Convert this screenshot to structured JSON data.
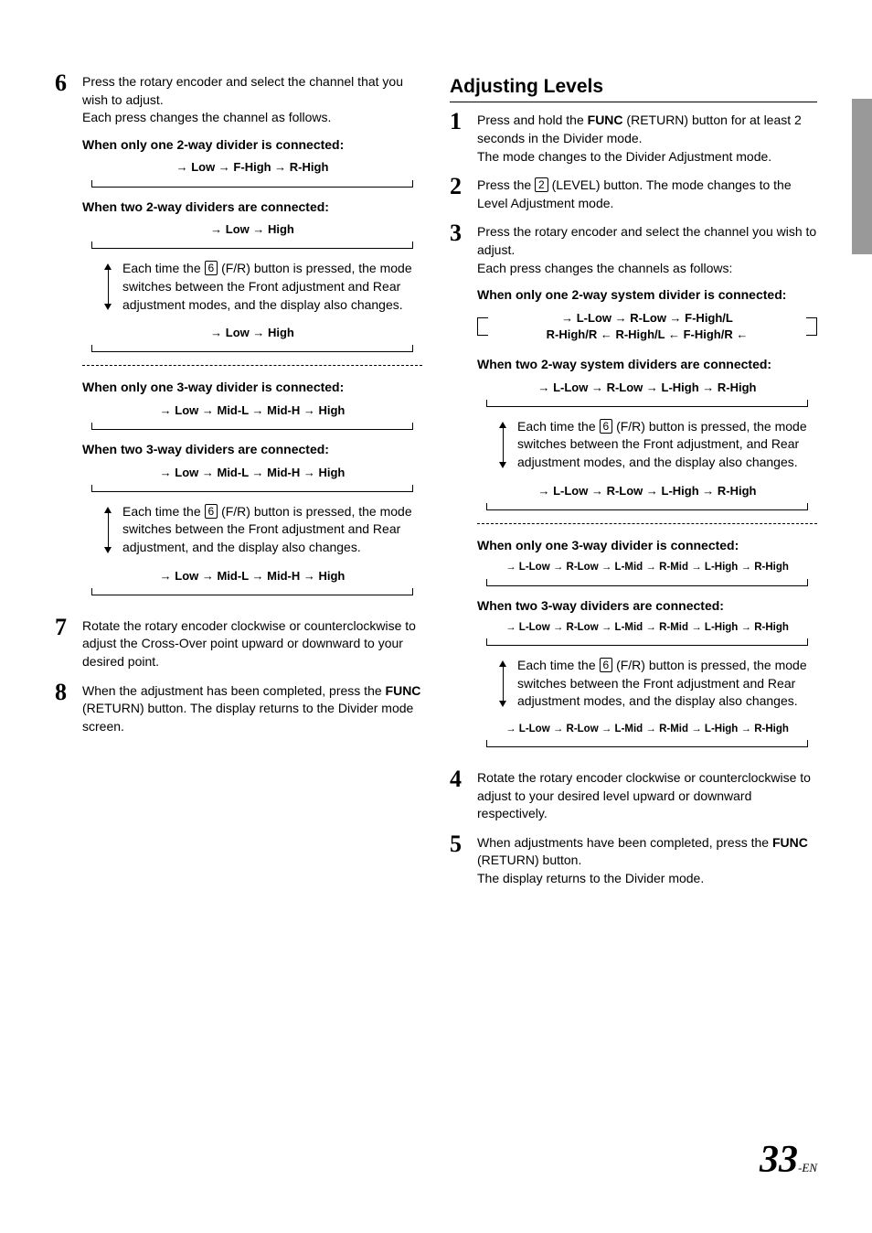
{
  "left": {
    "step6": {
      "num": "6",
      "intro_a": "Press the rotary encoder and select the channel that you wish to adjust.",
      "intro_b": "Each press changes the channel as follows.",
      "h1": "When only one 2-way divider is connected:",
      "cycle1": "→  Low  →  F-High  →  R-High",
      "h2": "When two 2-way dividers are connected:",
      "cycle2": "→   Low   →   High",
      "note1_a": "Each time the ",
      "note1_key": "6",
      "note1_b": " (F/R) button is pressed, the mode switches between the Front adjustment and Rear adjustment modes, and the display also changes.",
      "cycle3": "→   Low   →   High",
      "h3": "When only one 3-way divider is connected:",
      "cycle4": "→  Low →  Mid-L  →  Mid-H  →  High",
      "h4": "When two 3-way dividers are connected:",
      "cycle5": "→  Low →  Mid-L  →  Mid-H  →  High",
      "note2_a": "Each time the ",
      "note2_key": "6",
      "note2_b": " (F/R) button is pressed, the mode switches between the Front adjustment and Rear adjustment, and the display also changes.",
      "cycle6": "→  Low →  Mid-L  →  Mid-H  →  High"
    },
    "step7": {
      "num": "7",
      "text": "Rotate the rotary encoder clockwise or counterclockwise to adjust the Cross-Over point upward or downward to your desired point."
    },
    "step8": {
      "num": "8",
      "text_a": "When the adjustment has been completed, press the ",
      "text_b": "FUNC",
      "text_c": " (RETURN) button. The display returns to the Divider mode screen."
    }
  },
  "right": {
    "title": "Adjusting Levels",
    "step1": {
      "num": "1",
      "a": "Press and hold the ",
      "b": "FUNC",
      "c": " (RETURN) button for at least 2 seconds in the Divider mode.",
      "d": "The mode changes to the Divider Adjustment mode."
    },
    "step2": {
      "num": "2",
      "a": "Press the ",
      "key": "2",
      "b": " (LEVEL) button. The mode changes to the Level Adjustment mode."
    },
    "step3": {
      "num": "3",
      "a": "Press the rotary encoder and select the channel you wish to adjust.",
      "b": "Each press changes the channels as follows:",
      "h1": "When only one 2-way system divider is connected:",
      "cycle1_row1": "→  L-Low  →  R-Low  →  F-High/L",
      "cycle1_row2": "R-High/R  ←  R-High/L  ←  F-High/R  ←",
      "h2": "When two 2-way system dividers are connected:",
      "cycle2": "→  L-Low  →  R-Low  →  L-High  →  R-High",
      "note1_a": "Each time the ",
      "note1_key": "6",
      "note1_b": " (F/R) button is pressed, the mode switches between the Front adjustment, and Rear adjustment modes, and the display also changes.",
      "cycle3": "→  L-Low  →  R-Low  →  L-High  →  R-High",
      "h3": "When only one 3-way divider is connected:",
      "cycle4": "→ L-Low → R-Low → L-Mid → R-Mid → L-High → R-High",
      "h4": "When two 3-way dividers are connected:",
      "cycle5": "→ L-Low → R-Low → L-Mid → R-Mid → L-High → R-High",
      "note2_a": "Each time the ",
      "note2_key": "6",
      "note2_b": " (F/R) button is pressed, the mode switches between the Front adjustment and Rear adjustment modes, and the display also changes.",
      "cycle6": "→ L-Low → R-Low → L-Mid → R-Mid → L-High → R-High"
    },
    "step4": {
      "num": "4",
      "text": "Rotate the rotary encoder clockwise or counterclockwise to adjust to your desired level upward or downward respectively."
    },
    "step5": {
      "num": "5",
      "a": "When adjustments have been completed, press the ",
      "b": "FUNC",
      "c": " (RETURN) button.",
      "d": "The display returns to the Divider mode."
    }
  },
  "page": {
    "num": "33",
    "suffix": "-EN"
  }
}
